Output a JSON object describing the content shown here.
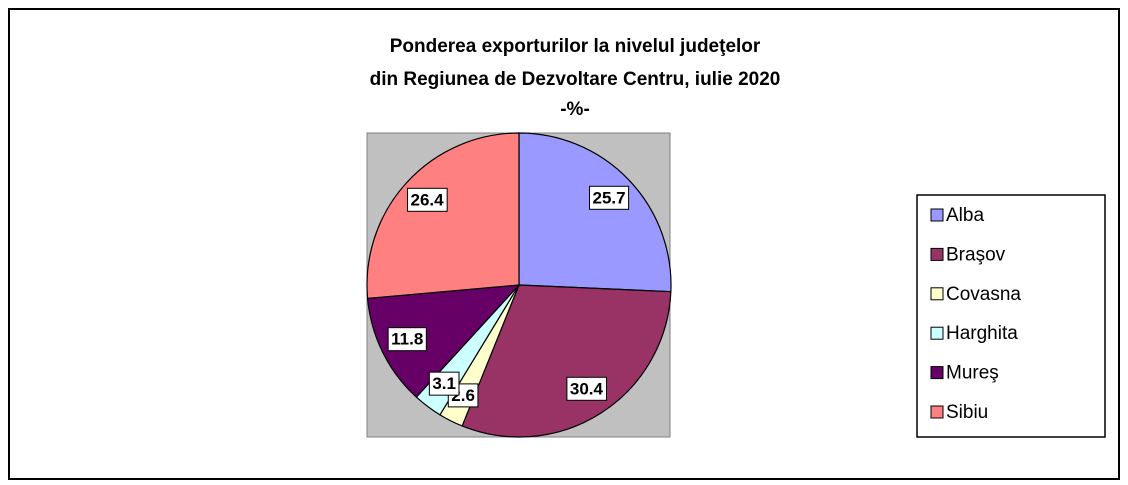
{
  "chart_data": {
    "type": "pie",
    "title": [
      "Ponderea exporturilor la nivelul judeţelor",
      "din Regiunea de Dezvoltare Centru, iulie 2020",
      "-%-"
    ],
    "categories": [
      "Alba",
      "Braşov",
      "Covasna",
      "Harghita",
      "Mureş",
      "Sibiu"
    ],
    "values": [
      25.7,
      30.4,
      2.6,
      3.1,
      11.8,
      26.4
    ],
    "colors": [
      "#9999ff",
      "#993366",
      "#ffffcc",
      "#ccffff",
      "#660066",
      "#ff8080"
    ],
    "legend": "right"
  }
}
